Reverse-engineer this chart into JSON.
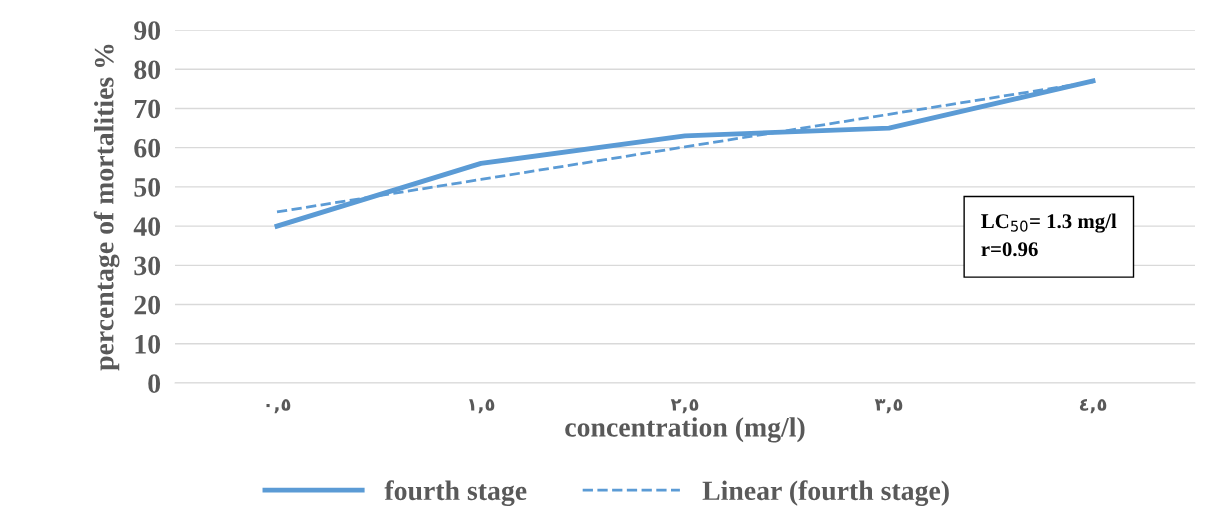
{
  "chart_data": {
    "type": "line",
    "categories": [
      "٠,٥",
      "١,٥",
      "٢,٥",
      "٣,٥",
      "٤,٥"
    ],
    "series": [
      {
        "name": "fourth stage",
        "color": "#5b9bd5",
        "values": [
          40,
          56,
          63,
          65,
          77
        ],
        "line_style": "solid"
      },
      {
        "name": "Linear (fourth stage)",
        "color": "#5b9bd5",
        "values": [
          43.6,
          51.9,
          60.2,
          68.5,
          76.8
        ],
        "line_style": "dashed"
      }
    ],
    "xlabel": "concentration (mg/l)",
    "ylabel": "percentage of mortalities %",
    "ylim": [
      0,
      90
    ],
    "yticks": [
      0,
      10,
      20,
      30,
      40,
      50,
      60,
      70,
      80,
      90
    ],
    "grid": "y",
    "legend": "bottom",
    "marker": "none",
    "annotations": [
      "LC$_{50}$= 1.3 mg/l\nr=0.96"
    ]
  }
}
